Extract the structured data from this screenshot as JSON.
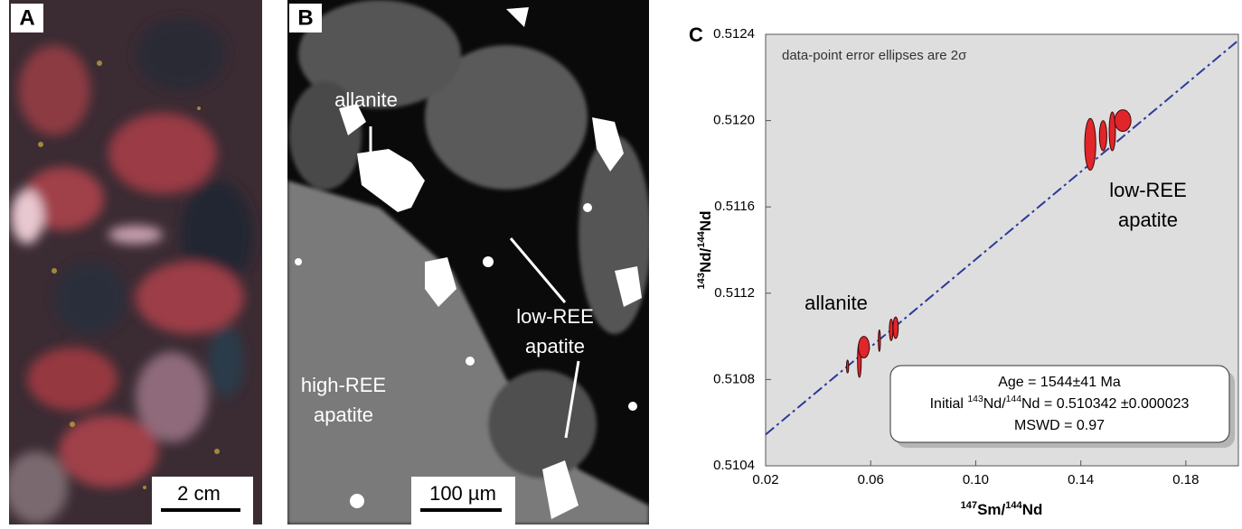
{
  "panel_a": {
    "label": "A",
    "scale_bar": "2 cm"
  },
  "panel_b": {
    "label": "B",
    "annotations": {
      "allanite": "allanite",
      "low_ree": [
        "low-REE",
        "apatite"
      ],
      "high_ree": [
        "high-REE",
        "apatite"
      ]
    },
    "scale_bar": "100 µm"
  },
  "chart_data": {
    "type": "scatter",
    "label": "C",
    "note": "data-point error ellipses are 2σ",
    "x_label": [
      "147",
      "Sm/",
      "144",
      "Nd"
    ],
    "y_label": [
      "143",
      "Nd/",
      "144",
      "Nd"
    ],
    "xlim": [
      0.02,
      0.2
    ],
    "ylim": [
      0.5104,
      0.5124
    ],
    "xticks": [
      0.02,
      0.06,
      {
        "value": 0.1,
        "label": "0.10"
      },
      0.14,
      0.18
    ],
    "yticks": [
      0.5104,
      0.5108,
      0.5112,
      0.5116,
      {
        "value": 0.512,
        "label": "0.5120"
      },
      0.5124
    ],
    "color": "#e0262b",
    "x": [
      0.0512,
      0.0557,
      0.0574,
      0.0633,
      0.0678,
      0.0695,
      0.1436,
      0.1485,
      0.152,
      0.156
    ],
    "values": [
      0.51086,
      0.51089,
      0.51095,
      0.51098,
      0.51103,
      0.51104,
      0.51189,
      0.51193,
      0.51195,
      0.512
    ],
    "x_err": [
      0.0004,
      0.0007,
      0.0021,
      0.0004,
      0.0007,
      0.001,
      0.0021,
      0.0014,
      0.0012,
      0.0031
    ],
    "y_err": [
      3e-05,
      8e-05,
      5e-05,
      5e-05,
      5e-05,
      5e-05,
      0.00012,
      7e-05,
      9e-05,
      5e-05
    ],
    "isochron": {
      "color": "#2b3a9c",
      "x": [
        0.02,
        0.2
      ],
      "y": [
        0.510545,
        0.512372
      ]
    },
    "group_labels": {
      "allanite": "allanite",
      "low_ree": [
        "low-REE",
        "apatite"
      ]
    },
    "result": {
      "age": "Age = 1544±41 Ma",
      "initial": [
        "Initial ",
        "143",
        "Nd/",
        "144",
        "Nd = 0.510342 ±0.000023"
      ],
      "mswd": "MSWD = 0.97"
    }
  }
}
